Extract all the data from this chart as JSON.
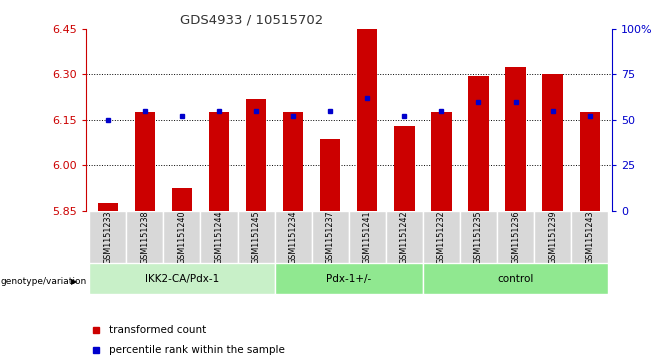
{
  "title": "GDS4933 / 10515702",
  "samples": [
    "GSM1151233",
    "GSM1151238",
    "GSM1151240",
    "GSM1151244",
    "GSM1151245",
    "GSM1151234",
    "GSM1151237",
    "GSM1151241",
    "GSM1151242",
    "GSM1151232",
    "GSM1151235",
    "GSM1151236",
    "GSM1151239",
    "GSM1151243"
  ],
  "red_values": [
    5.875,
    6.175,
    5.925,
    6.175,
    6.22,
    6.175,
    6.085,
    6.45,
    6.13,
    6.175,
    6.295,
    6.325,
    6.3,
    6.175
  ],
  "blue_values": [
    50,
    55,
    52,
    55,
    55,
    52,
    55,
    62,
    52,
    55,
    60,
    60,
    55,
    52
  ],
  "ylim_left": [
    5.85,
    6.45
  ],
  "ylim_right": [
    0,
    100
  ],
  "yticks_left": [
    5.85,
    6.0,
    6.15,
    6.3,
    6.45
  ],
  "yticks_right": [
    0,
    25,
    50,
    75,
    100
  ],
  "group_labels": [
    "IKK2-CA/Pdx-1",
    "Pdx-1+/-",
    "control"
  ],
  "group_starts": [
    0,
    5,
    9
  ],
  "group_ends": [
    5,
    9,
    14
  ],
  "group_colors": [
    "#c8f0c8",
    "#90e890",
    "#90e890"
  ],
  "group_label": "genotype/variation",
  "red_color": "#cc0000",
  "blue_color": "#0000cc",
  "bar_width": 0.55,
  "legend_red": "transformed count",
  "legend_blue": "percentile rank within the sample",
  "title_color": "#333333",
  "left_axis_color": "#cc0000",
  "right_axis_color": "#0000cc",
  "grid_ticks": [
    6.0,
    6.15,
    6.3
  ],
  "sample_bg_color": "#d8d8d8",
  "sample_border_color": "#ffffff"
}
